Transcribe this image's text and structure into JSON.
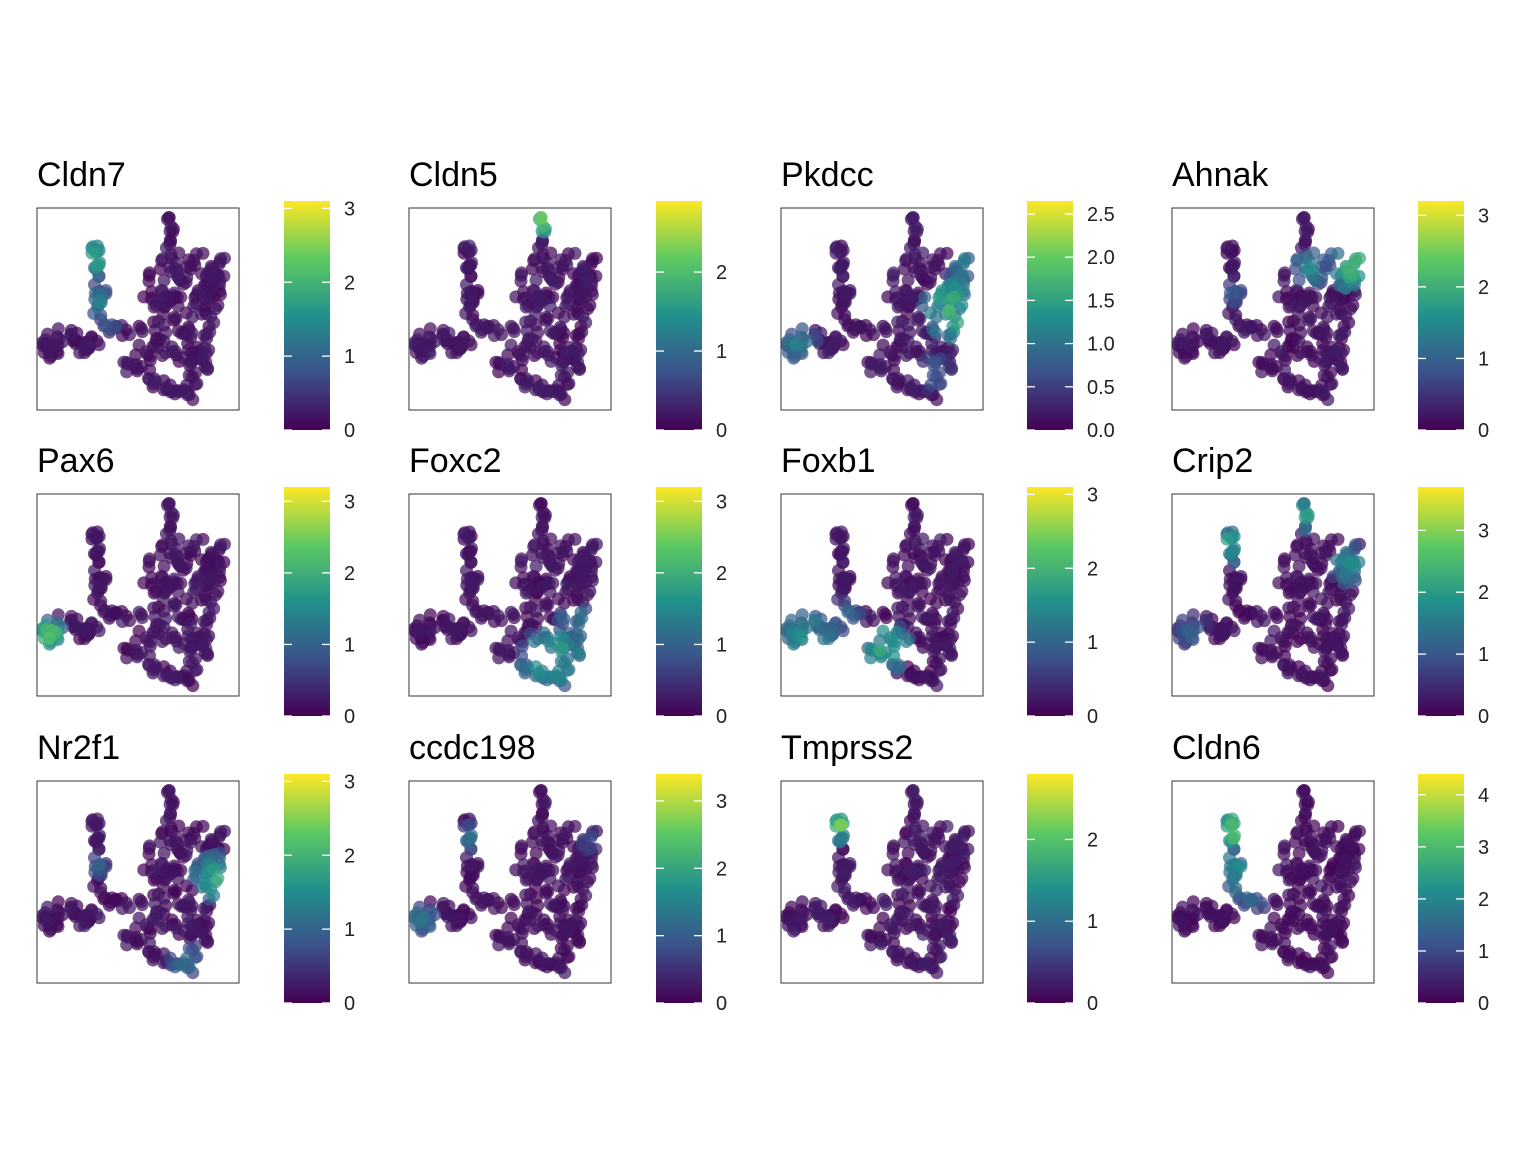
{
  "figure": {
    "colormap": "viridis",
    "colormap_stops": [
      "#440154",
      "#3b528b",
      "#21918c",
      "#5ec962",
      "#fde725"
    ]
  },
  "chart_data": [
    {
      "type": "scatter",
      "title": "Cldn7",
      "vmax": 3.1,
      "ticks": [
        0,
        1,
        2,
        3
      ],
      "hotspots": [
        {
          "x": 0.28,
          "y": 0.24,
          "r": 0.07,
          "v": 1.9
        },
        {
          "x": 0.3,
          "y": 0.46,
          "r": 0.05,
          "v": 1.3
        },
        {
          "x": 0.35,
          "y": 0.55,
          "r": 0.04,
          "v": 1.0
        }
      ]
    },
    {
      "type": "scatter",
      "title": "Cldn5",
      "vmax": 2.9,
      "ticks": [
        0,
        1,
        2
      ],
      "hotspots": [
        {
          "x": 0.66,
          "y": 0.06,
          "r": 0.04,
          "v": 2.6
        }
      ]
    },
    {
      "type": "scatter",
      "title": "Pkdcc",
      "vmax": 2.65,
      "ticks": [
        "0.0",
        "0.5",
        "1.0",
        "1.5",
        "2.0",
        "2.5"
      ],
      "hotspots": [
        {
          "x": 0.85,
          "y": 0.5,
          "r": 0.09,
          "v": 1.8
        },
        {
          "x": 0.08,
          "y": 0.68,
          "r": 0.06,
          "v": 1.1
        },
        {
          "x": 0.76,
          "y": 0.82,
          "r": 0.05,
          "v": 0.9
        },
        {
          "x": 0.92,
          "y": 0.3,
          "r": 0.05,
          "v": 1.3
        }
      ]
    },
    {
      "type": "scatter",
      "title": "Ahnak",
      "vmax": 3.2,
      "ticks": [
        0,
        1,
        2,
        3
      ],
      "hotspots": [
        {
          "x": 0.9,
          "y": 0.28,
          "r": 0.07,
          "v": 2.3
        },
        {
          "x": 0.68,
          "y": 0.3,
          "r": 0.06,
          "v": 1.5
        },
        {
          "x": 0.28,
          "y": 0.42,
          "r": 0.04,
          "v": 1.1
        }
      ]
    },
    {
      "type": "scatter",
      "title": "Pax6",
      "vmax": 3.2,
      "ticks": [
        0,
        1,
        2,
        3
      ],
      "hotspots": [
        {
          "x": 0.06,
          "y": 0.7,
          "r": 0.05,
          "v": 2.4
        }
      ]
    },
    {
      "type": "scatter",
      "title": "Foxc2",
      "vmax": 3.2,
      "ticks": [
        0,
        1,
        2,
        3
      ],
      "hotspots": [
        {
          "x": 0.72,
          "y": 0.82,
          "r": 0.1,
          "v": 2.0
        },
        {
          "x": 0.82,
          "y": 0.62,
          "r": 0.05,
          "v": 1.4
        }
      ]
    },
    {
      "type": "scatter",
      "title": "Foxb1",
      "vmax": 3.1,
      "ticks": [
        0,
        1,
        2,
        3
      ],
      "hotspots": [
        {
          "x": 0.12,
          "y": 0.7,
          "r": 0.11,
          "v": 1.5
        },
        {
          "x": 0.52,
          "y": 0.76,
          "r": 0.07,
          "v": 2.1
        },
        {
          "x": 0.32,
          "y": 0.6,
          "r": 0.05,
          "v": 1.1
        }
      ]
    },
    {
      "type": "scatter",
      "title": "Crip2",
      "vmax": 3.7,
      "ticks": [
        0,
        1,
        2,
        3
      ],
      "hotspots": [
        {
          "x": 0.3,
          "y": 0.24,
          "r": 0.06,
          "v": 2.2
        },
        {
          "x": 0.66,
          "y": 0.1,
          "r": 0.05,
          "v": 2.2
        },
        {
          "x": 0.88,
          "y": 0.35,
          "r": 0.06,
          "v": 1.8
        },
        {
          "x": 0.1,
          "y": 0.68,
          "r": 0.05,
          "v": 1.2
        }
      ]
    },
    {
      "type": "scatter",
      "title": "Nr2f1",
      "vmax": 3.1,
      "ticks": [
        0,
        1,
        2,
        3
      ],
      "hotspots": [
        {
          "x": 0.88,
          "y": 0.48,
          "r": 0.07,
          "v": 1.9
        },
        {
          "x": 0.74,
          "y": 0.88,
          "r": 0.05,
          "v": 1.3
        },
        {
          "x": 0.3,
          "y": 0.42,
          "r": 0.03,
          "v": 1.0
        }
      ]
    },
    {
      "type": "scatter",
      "title": "ccdc198",
      "vmax": 3.4,
      "ticks": [
        0,
        1,
        2,
        3
      ],
      "hotspots": [
        {
          "x": 0.06,
          "y": 0.68,
          "r": 0.05,
          "v": 1.4
        },
        {
          "x": 0.3,
          "y": 0.28,
          "r": 0.04,
          "v": 1.3
        },
        {
          "x": 0.9,
          "y": 0.3,
          "r": 0.03,
          "v": 1.0
        }
      ]
    },
    {
      "type": "scatter",
      "title": "Tmprss2",
      "vmax": 2.8,
      "ticks": [
        0,
        1,
        2
      ],
      "hotspots": [
        {
          "x": 0.3,
          "y": 0.22,
          "r": 0.05,
          "v": 2.0
        }
      ]
    },
    {
      "type": "scatter",
      "title": "Cldn6",
      "vmax": 4.4,
      "ticks": [
        0,
        1,
        2,
        3,
        4
      ],
      "hotspots": [
        {
          "x": 0.3,
          "y": 0.24,
          "r": 0.05,
          "v": 3.6
        },
        {
          "x": 0.32,
          "y": 0.44,
          "r": 0.08,
          "v": 2.2
        },
        {
          "x": 0.4,
          "y": 0.56,
          "r": 0.05,
          "v": 1.6
        }
      ]
    }
  ]
}
